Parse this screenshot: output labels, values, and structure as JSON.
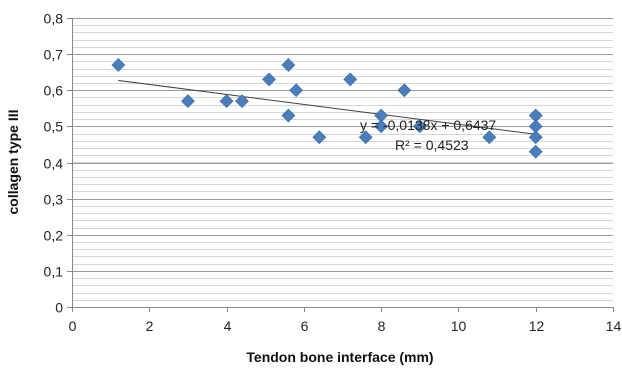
{
  "chart_data": {
    "type": "scatter",
    "title": "",
    "xlabel": "Tendon bone  interface (mm)",
    "ylabel": "collagen type III",
    "xlim": [
      0,
      14
    ],
    "ylim": [
      0,
      0.8
    ],
    "x_ticks": [
      0,
      2,
      4,
      6,
      8,
      10,
      12,
      14
    ],
    "x_tick_labels": [
      "0",
      "2",
      "4",
      "6",
      "8",
      "10",
      "12",
      "14"
    ],
    "y_ticks": [
      0,
      0.1,
      0.2,
      0.3,
      0.4,
      0.5,
      0.6,
      0.7,
      0.8
    ],
    "y_tick_labels": [
      "0",
      "0,1",
      "0,2",
      "0,3",
      "0,4",
      "0,5",
      "0,6",
      "0,7",
      "0,8"
    ],
    "grid": true,
    "legend": "none",
    "marker_color": "#4a7ebb",
    "marker": "diamond",
    "trendline_color": "#404040",
    "series": [
      {
        "points": [
          [
            1.2,
            0.67
          ],
          [
            3.0,
            0.57
          ],
          [
            4.0,
            0.57
          ],
          [
            4.4,
            0.57
          ],
          [
            5.1,
            0.63
          ],
          [
            5.6,
            0.67
          ],
          [
            5.6,
            0.53
          ],
          [
            5.8,
            0.6
          ],
          [
            6.4,
            0.47
          ],
          [
            7.2,
            0.63
          ],
          [
            7.6,
            0.47
          ],
          [
            8.0,
            0.53
          ],
          [
            8.0,
            0.5
          ],
          [
            8.6,
            0.6
          ],
          [
            9.0,
            0.5
          ],
          [
            10.8,
            0.47
          ],
          [
            12.0,
            0.53
          ],
          [
            12.0,
            0.5
          ],
          [
            12.0,
            0.47
          ],
          [
            12.0,
            0.43
          ]
        ]
      }
    ],
    "trendline": {
      "slope": -0.0138,
      "intercept": 0.6437,
      "x_range": [
        1.2,
        12.0
      ]
    },
    "annotations": [
      "y = -0,0138x + 0,6437",
      "R² = 0,4523"
    ]
  }
}
